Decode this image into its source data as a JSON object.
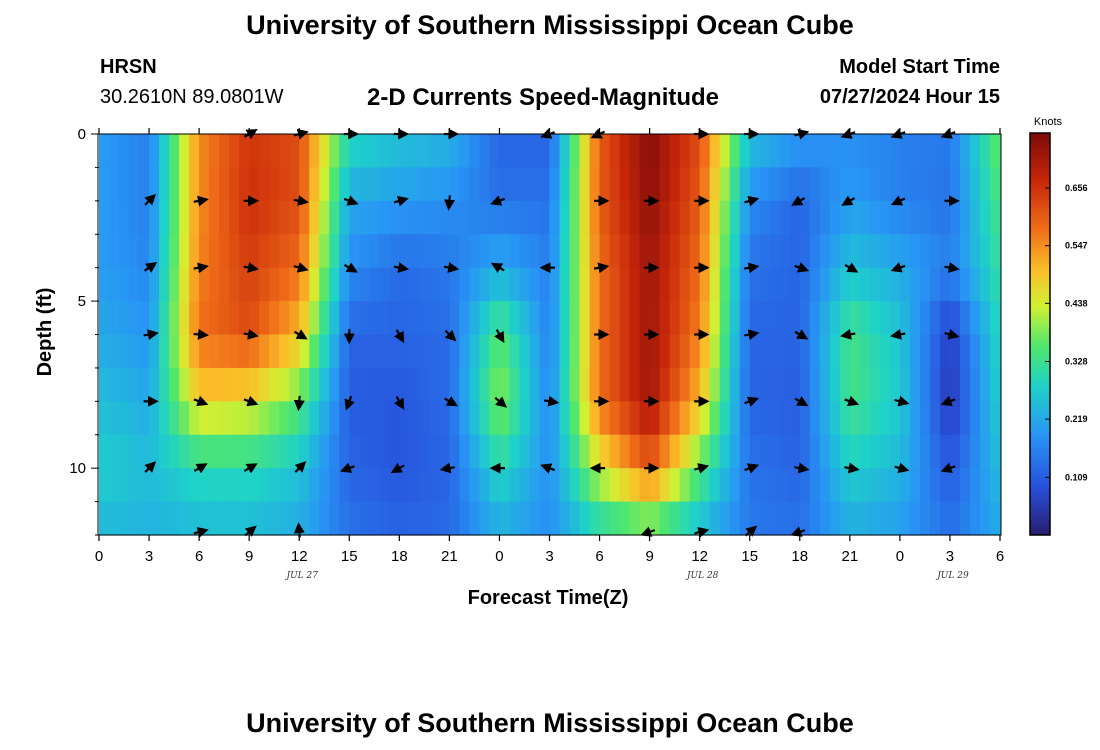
{
  "header": {
    "title": "University of Southern Mississippi Ocean Cube",
    "station": "HRSN",
    "coords": "30.2610N  89.0801W",
    "subtitle": "2-D Currents Speed-Magnitude",
    "model_label": "Model Start Time",
    "model_time": "07/27/2024 Hour 15"
  },
  "footer": {
    "title": "University of Southern Mississippi Ocean Cube"
  },
  "chart_data": {
    "type": "heatmap",
    "title": "2-D Currents Speed-Magnitude",
    "xlabel": "Forecast Time(Z)",
    "ylabel": "Depth (ft)",
    "x_tick_labels": [
      "0",
      "3",
      "6",
      "9",
      "12",
      "15",
      "18",
      "21",
      "0",
      "3",
      "6",
      "9",
      "12",
      "15",
      "18",
      "21",
      "0",
      "3",
      "6"
    ],
    "x_range_hours": [
      0,
      54
    ],
    "date_labels": [
      {
        "hour": 12,
        "label": "JUL 27"
      },
      {
        "hour": 36,
        "label": "JUL 28"
      },
      {
        "hour": 51,
        "label": "JUL 29"
      }
    ],
    "y_ticks": [
      0,
      5,
      10
    ],
    "y_range_ft": [
      0,
      12
    ],
    "colorbar": {
      "label": "Knots",
      "tick_values": [
        0.109,
        0.219,
        0.328,
        0.438,
        0.547,
        0.656
      ],
      "tick_labels": [
        "0.109",
        "0.219",
        "0.328",
        "0.438",
        "0.547",
        "0.656"
      ],
      "range": [
        0.0,
        0.76
      ]
    },
    "depths_ft": [
      0,
      2,
      4,
      6,
      8,
      10,
      12
    ],
    "speed_knots": [
      [
        0.2,
        0.16,
        0.55,
        0.65,
        0.62,
        0.3,
        0.26,
        0.24,
        0.12,
        0.12,
        0.6,
        0.75,
        0.62,
        0.26,
        0.2,
        0.18,
        0.16,
        0.15,
        0.38
      ],
      [
        0.2,
        0.16,
        0.55,
        0.66,
        0.62,
        0.22,
        0.2,
        0.18,
        0.14,
        0.14,
        0.6,
        0.74,
        0.6,
        0.18,
        0.12,
        0.2,
        0.16,
        0.14,
        0.35
      ],
      [
        0.2,
        0.17,
        0.56,
        0.64,
        0.58,
        0.18,
        0.13,
        0.15,
        0.22,
        0.16,
        0.58,
        0.72,
        0.58,
        0.14,
        0.12,
        0.26,
        0.22,
        0.16,
        0.32
      ],
      [
        0.22,
        0.19,
        0.58,
        0.62,
        0.5,
        0.12,
        0.12,
        0.13,
        0.36,
        0.16,
        0.58,
        0.72,
        0.56,
        0.12,
        0.12,
        0.34,
        0.26,
        0.06,
        0.3
      ],
      [
        0.25,
        0.22,
        0.48,
        0.46,
        0.36,
        0.11,
        0.1,
        0.13,
        0.4,
        0.17,
        0.58,
        0.72,
        0.5,
        0.12,
        0.11,
        0.34,
        0.27,
        0.05,
        0.28
      ],
      [
        0.28,
        0.25,
        0.3,
        0.3,
        0.26,
        0.12,
        0.1,
        0.12,
        0.3,
        0.18,
        0.44,
        0.6,
        0.36,
        0.14,
        0.12,
        0.28,
        0.24,
        0.1,
        0.25
      ],
      [
        0.24,
        0.23,
        0.24,
        0.24,
        0.22,
        0.14,
        0.12,
        0.13,
        0.22,
        0.18,
        0.28,
        0.32,
        0.24,
        0.15,
        0.14,
        0.22,
        0.2,
        0.14,
        0.22
      ]
    ],
    "vector_hours": [
      3,
      6,
      9,
      12,
      15,
      18,
      21,
      24,
      27,
      30,
      33,
      36,
      39,
      42,
      45,
      48,
      51
    ],
    "vector_depths_ft": [
      0,
      2,
      4,
      6,
      8,
      10,
      12
    ],
    "vector_dir_deg": [
      [
        null,
        null,
        30,
        15,
        0,
        0,
        0,
        null,
        200,
        205,
        null,
        0,
        0,
        15,
        200,
        200,
        200
      ],
      [
        45,
        10,
        0,
        -10,
        -20,
        15,
        -95,
        200,
        null,
        0,
        0,
        0,
        15,
        210,
        210,
        205,
        0
      ],
      [
        35,
        10,
        -10,
        -15,
        -30,
        -10,
        -10,
        150,
        180,
        10,
        0,
        0,
        10,
        -20,
        -30,
        200,
        -10
      ],
      [
        10,
        -5,
        -10,
        -30,
        -90,
        -60,
        -45,
        -60,
        null,
        0,
        0,
        0,
        10,
        -30,
        190,
        190,
        -15
      ],
      [
        0,
        -20,
        -20,
        -95,
        -110,
        -60,
        -30,
        -40,
        -10,
        0,
        0,
        0,
        20,
        -30,
        -20,
        -15,
        200
      ],
      [
        45,
        30,
        30,
        45,
        200,
        210,
        190,
        180,
        160,
        180,
        0,
        15,
        20,
        -10,
        -10,
        -15,
        200
      ],
      [
        null,
        15,
        40,
        95,
        null,
        null,
        null,
        null,
        null,
        null,
        200,
        15,
        40,
        200,
        null,
        null,
        null
      ]
    ]
  }
}
